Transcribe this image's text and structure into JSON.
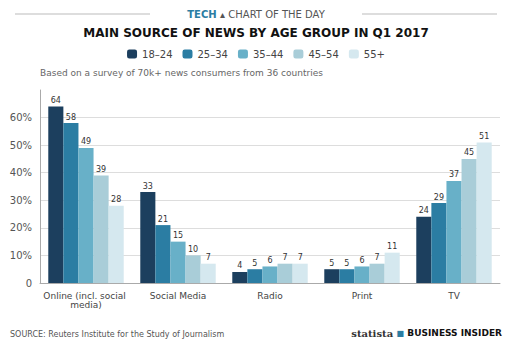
{
  "chart_data": {
    "type": "bar",
    "title": "MAIN SOURCE OF NEWS BY AGE GROUP IN Q1 2017",
    "subtitle": "Based on a survey of 70k+ news consumers from 36 countries",
    "annotations": [
      "TECH",
      "▴",
      "CHART OF THE DAY",
      "SOURCE: Reuters Institute for the Study of Journalism",
      "statista",
      "■",
      "BUSINESS INSIDER"
    ],
    "categories": [
      "Online (incl. social media)",
      "Social Media",
      "Radio",
      "Print",
      "TV"
    ],
    "series": [
      {
        "name": "18–24",
        "color": "#1c3f5e",
        "values": [
          64,
          33,
          4,
          5,
          24
        ]
      },
      {
        "name": "25–34",
        "color": "#2b7da3",
        "values": [
          58,
          21,
          5,
          5,
          29
        ]
      },
      {
        "name": "35–44",
        "color": "#68b0c8",
        "values": [
          49,
          15,
          6,
          6,
          37
        ]
      },
      {
        "name": "45–54",
        "color": "#a9cdd8",
        "values": [
          39,
          10,
          7,
          7,
          45
        ]
      },
      {
        "name": "55+",
        "color": "#d5e8ef",
        "values": [
          28,
          7,
          7,
          11,
          51
        ]
      }
    ],
    "ylim": [
      0,
      70
    ],
    "yticks": [
      0,
      {
        "value": 10,
        "label": "10%"
      },
      {
        "value": 20,
        "label": "20%"
      },
      {
        "value": 30,
        "label": "30%"
      },
      {
        "value": 40,
        "label": "40%"
      },
      {
        "value": 50,
        "label": "50%"
      },
      {
        "value": 60,
        "label": "60%"
      }
    ],
    "grid": true,
    "legend": "top",
    "data_labels": true
  }
}
